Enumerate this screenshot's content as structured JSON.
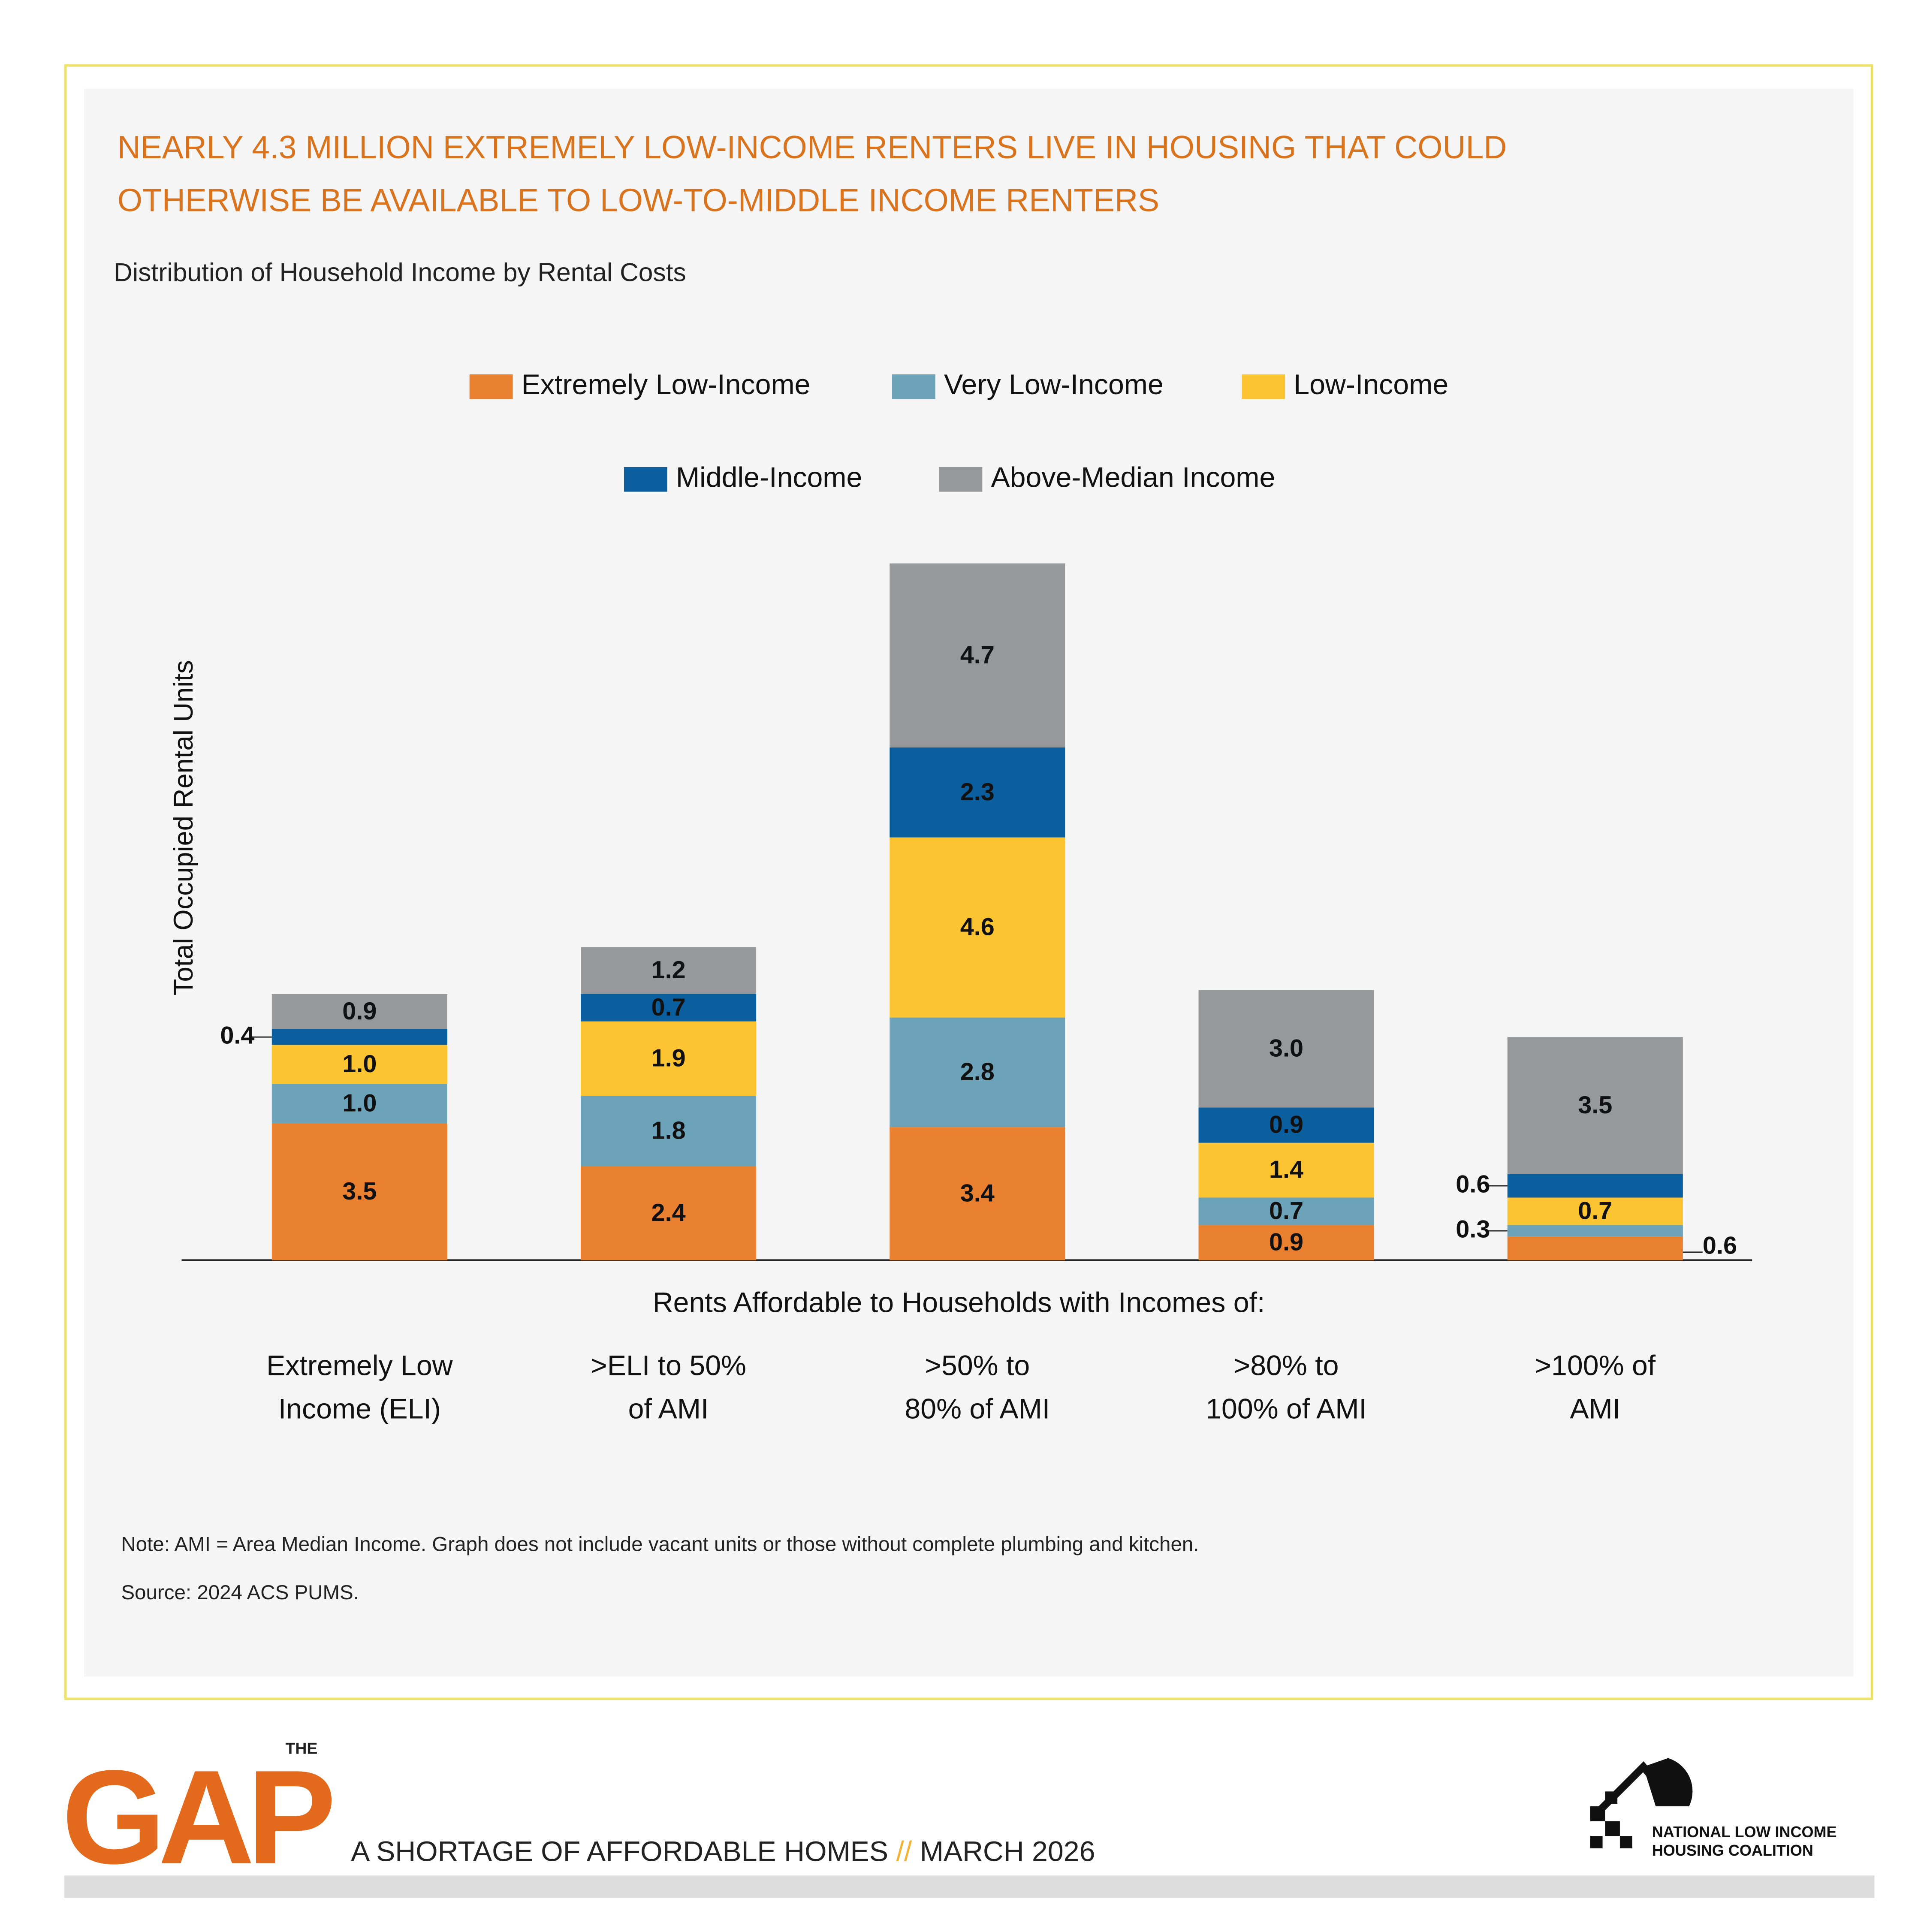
{
  "chart_data": {
    "type": "stacked_bar",
    "title": "NEARLY 4.3 MILLION EXTREMELY LOW-INCOME RENTERS LIVE IN HOUSING THAT COULD\nOTHERWISE BE AVAILABLE TO LOW-TO-MIDDLE INCOME RENTERS",
    "subtitle": "Distribution of Household Income by Rental Costs",
    "y_label": "Total Occupied Rental Units",
    "x_label": "Rents Affordable to Households with Incomes of:",
    "categories": [
      "Extremely Low\nIncome (ELI)",
      ">ELI to 50%\nof AMI",
      ">50% to\n80% of AMI",
      ">80% to\n100% of AMI",
      ">100% of\nAMI"
    ],
    "series": [
      {
        "name": "Extremely Low-Income",
        "color": "#E8802F",
        "values": [
          3.5,
          2.4,
          3.4,
          0.9,
          0.6
        ],
        "value_labels": [
          "3.5",
          "2.4",
          "3.4",
          "0.9",
          "0.6"
        ]
      },
      {
        "name": "Very Low-Income",
        "color": "#6DA3B8",
        "values": [
          1.0,
          1.8,
          2.8,
          0.7,
          0.3
        ],
        "value_labels": [
          "1.0",
          "1.8",
          "2.8",
          "0.7",
          "0.3"
        ]
      },
      {
        "name": "Low-Income",
        "color": "#FDC431",
        "values": [
          1.0,
          1.9,
          4.6,
          1.4,
          0.7
        ],
        "value_labels": [
          "1.0",
          "1.9",
          "4.6",
          "1.4",
          "0.7"
        ]
      },
      {
        "name": "Middle-Income",
        "color": "#0C5F9E",
        "values": [
          0.4,
          0.7,
          2.3,
          0.9,
          0.6
        ],
        "value_labels": [
          "0.4",
          "0.7",
          "2.3",
          "0.9",
          "0.6"
        ]
      },
      {
        "name": "Above-Median Income",
        "color": "#97989A",
        "values": [
          0.9,
          1.2,
          4.7,
          3.0,
          3.5
        ],
        "value_labels": [
          "0.9",
          "1.2",
          "4.7",
          "3.0",
          "3.5"
        ]
      }
    ],
    "note": "Note: AMI = Area Median Income. Graph does not include vacant units or those without complete plumbing and kitchen.",
    "source": "Source: 2024 ACS PUMS."
  },
  "footer": {
    "the": "THE",
    "brand": "GAP",
    "tagline": "A SHORTAGE OF AFFORDABLE HOMES",
    "separator": "//",
    "date": "MARCH 2026",
    "organization": "NATIONAL LOW INCOME\nHOUSING COALITION"
  }
}
